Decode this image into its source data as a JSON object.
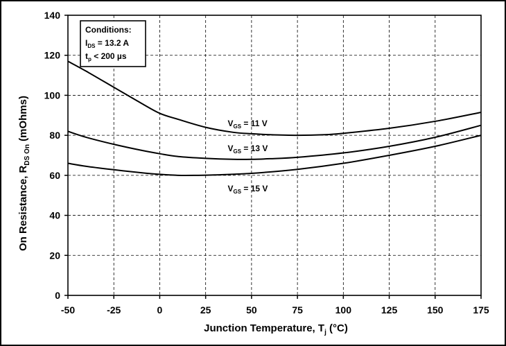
{
  "chart_data": {
    "type": "line",
    "xlabel": {
      "main": "Junction Temperature, T",
      "sub": "j",
      "tail": " (°C)"
    },
    "ylabel": {
      "main": "On Resistance, R",
      "sub": "DS On",
      "tail": " (mOhms)"
    },
    "xlim": [
      -50,
      175
    ],
    "ylim": [
      0,
      140
    ],
    "xticks": [
      -50,
      -25,
      0,
      25,
      50,
      75,
      100,
      125,
      150,
      175
    ],
    "yticks": [
      0,
      20,
      40,
      60,
      80,
      100,
      120,
      140
    ],
    "grid": true,
    "conditions": {
      "title": "Conditions:",
      "line1": {
        "main": "I",
        "sub": "DS",
        "tail": " = 13.2 A"
      },
      "line2": {
        "main": "t",
        "sub": "p",
        "tail": " < 200 µs"
      }
    },
    "series": [
      {
        "name": {
          "main": "V",
          "sub": "GS",
          "tail": " = 11 V"
        },
        "x": [
          -50,
          -40,
          -25,
          -10,
          0,
          10,
          25,
          40,
          50,
          60,
          75,
          90,
          100,
          125,
          150,
          175
        ],
        "y": [
          117,
          112,
          104,
          96,
          91,
          88,
          84,
          81.5,
          80.8,
          80.3,
          80,
          80.3,
          81,
          83.5,
          87,
          91.5
        ]
      },
      {
        "name": {
          "main": "V",
          "sub": "GS",
          "tail": " = 13 V"
        },
        "x": [
          -50,
          -40,
          -25,
          -10,
          0,
          10,
          25,
          40,
          50,
          60,
          75,
          100,
          125,
          150,
          175
        ],
        "y": [
          82,
          79,
          75.5,
          72.5,
          70.8,
          69.4,
          68.5,
          68,
          68,
          68.3,
          69,
          71.2,
          74.5,
          79,
          85
        ]
      },
      {
        "name": {
          "main": "V",
          "sub": "GS",
          "tail": " = 15 V"
        },
        "x": [
          -50,
          -40,
          -25,
          -10,
          0,
          10,
          20,
          30,
          50,
          75,
          100,
          125,
          150,
          175
        ],
        "y": [
          66,
          64.5,
          62.8,
          61.3,
          60.5,
          60,
          60,
          60.2,
          61,
          63,
          66,
          70,
          74.5,
          80
        ]
      }
    ]
  }
}
